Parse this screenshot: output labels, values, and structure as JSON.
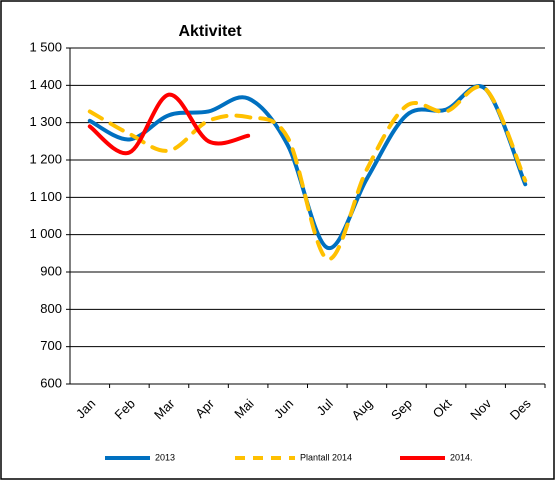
{
  "chart_data": {
    "type": "line",
    "title": "Aktivitet",
    "categories": [
      "Jan",
      "Feb",
      "Mar",
      "Apr",
      "Mai",
      "Jun",
      "Jul",
      "Aug",
      "Sep",
      "Okt",
      "Nov",
      "Des"
    ],
    "series": [
      {
        "name": "2013",
        "color": "#0070c0",
        "values": [
          1305,
          1255,
          1320,
          1330,
          1365,
          1240,
          965,
          1150,
          1320,
          1335,
          1390,
          1135
        ]
      },
      {
        "name": "Plantall 2014",
        "color": "#ffc000",
        "dashed": true,
        "values": [
          1330,
          1270,
          1225,
          1305,
          1315,
          1260,
          935,
          1175,
          1345,
          1330,
          1390,
          1145
        ]
      },
      {
        "name": "2014.",
        "color": "#ff0000",
        "values": [
          1290,
          1220,
          1375,
          1250,
          1265,
          null,
          null,
          null,
          null,
          null,
          null,
          null
        ]
      }
    ],
    "ylim": [
      600,
      1500
    ],
    "yticks": [
      {
        "value": 1500,
        "label": "1 500"
      },
      {
        "value": 1400,
        "label": "1 400"
      },
      {
        "value": 1300,
        "label": "1 300"
      },
      {
        "value": 1200,
        "label": "1 200"
      },
      {
        "value": 1100,
        "label": "1 100"
      },
      {
        "value": 1000,
        "label": "1 000"
      },
      900,
      800,
      700,
      600
    ],
    "grid": true,
    "legend": "bottom"
  }
}
